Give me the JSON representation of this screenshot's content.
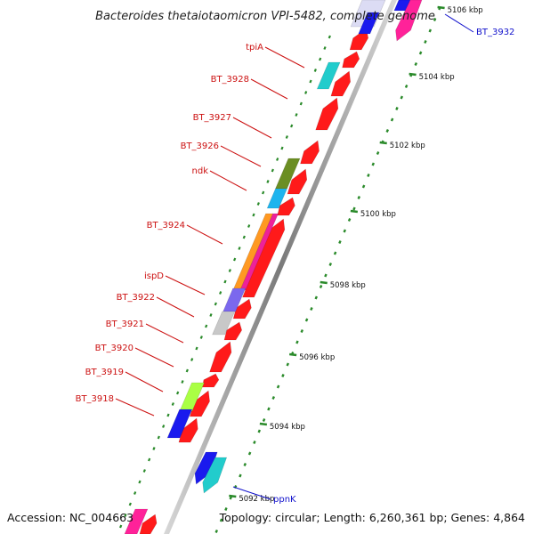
{
  "title": "Bacteroides thetaiotaomicron VPI-5482, complete genome",
  "footer": {
    "accession": "Accession: NC_004663",
    "topology": "Topology: circular; Length: 6,260,361 bp; Genes: 4,864"
  },
  "colors": {
    "backbone": "#8c8c8c",
    "gene_default": "#ff1a1a",
    "label_red": "#cc1111",
    "label_blue": "#1111cc",
    "ruler": "#2a8a2a"
  },
  "ruler_labels": [
    "5092 kbp",
    "5094 kbp",
    "5096 kbp",
    "5098 kbp",
    "5100 kbp",
    "5102 kbp",
    "5104 kbp",
    "5106 kbp"
  ],
  "gene_labels_left": [
    "tpiA",
    "BT_3928",
    "BT_3927",
    "BT_3926",
    "ndk",
    "BT_3924",
    "ispD",
    "BT_3922",
    "BT_3921",
    "BT_3920",
    "BT_3919",
    "BT_3918"
  ],
  "gene_labels_right": [
    "BT_3932",
    "ppnK"
  ]
}
